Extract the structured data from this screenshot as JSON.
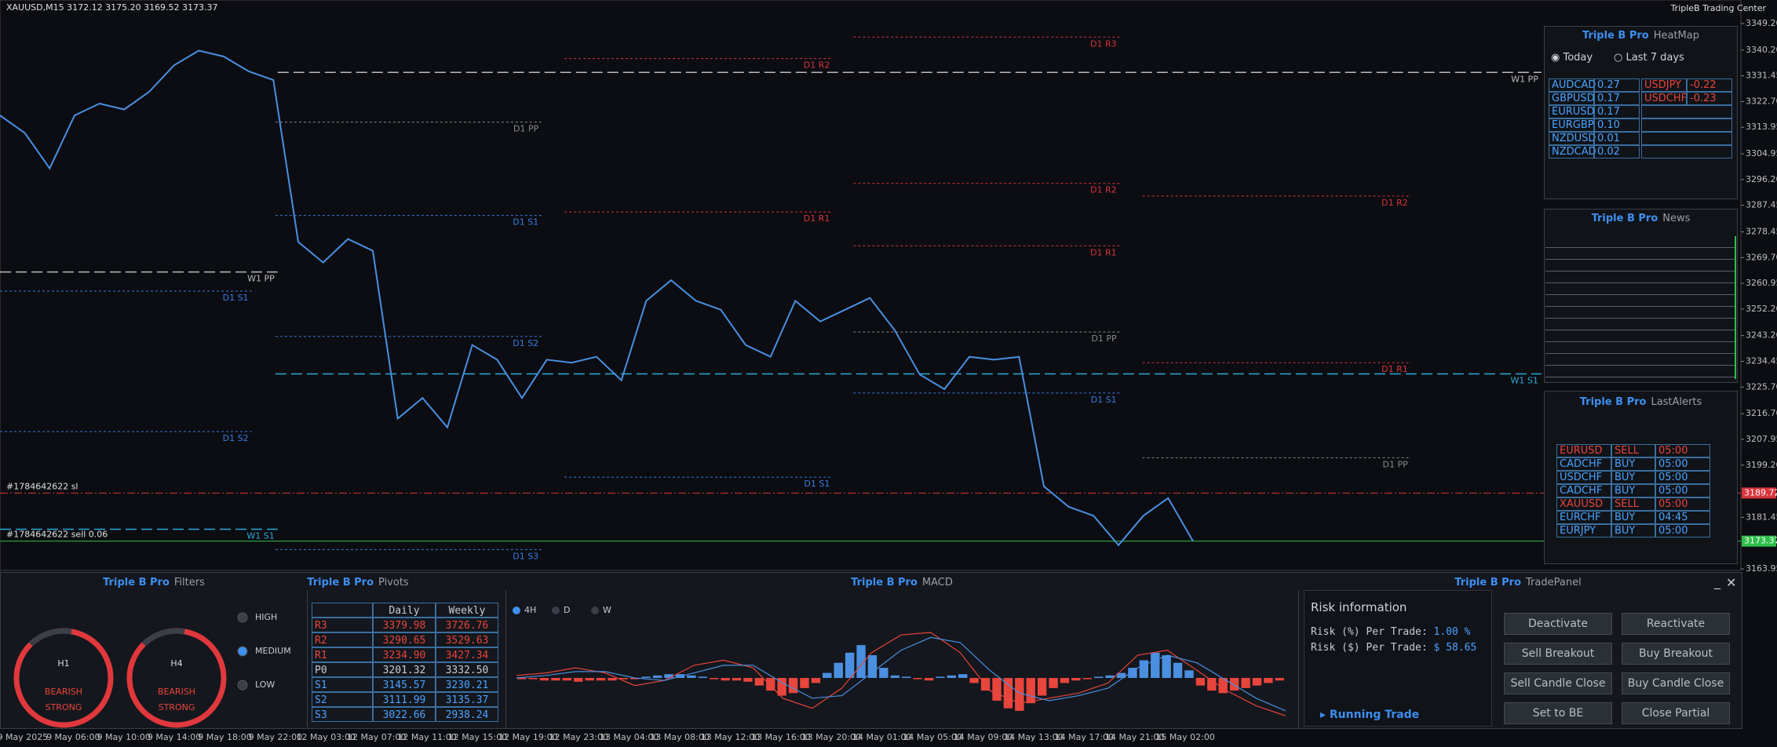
{
  "header": {
    "symbol_info": "XAUUSD,M15  3172.12 3175.20 3169.52 3173.37",
    "brand": "TripleB Trading Center"
  },
  "chart_data": {
    "type": "line",
    "x_labels": [
      "9 May 2025",
      "9 May 06:00",
      "9 May 10:00",
      "9 May 14:00",
      "9 May 18:00",
      "9 May 22:00",
      "12 May 03:00",
      "12 May 07:00",
      "12 May 11:00",
      "12 May 15:00",
      "12 May 19:00",
      "12 May 23:00",
      "13 May 04:00",
      "13 May 08:00",
      "13 May 12:00",
      "13 May 16:00",
      "13 May 20:00",
      "14 May 01:00",
      "14 May 05:00",
      "14 May 09:00",
      "14 May 13:00",
      "14 May 17:00",
      "14 May 21:00",
      "15 May 02:00"
    ],
    "close": [
      3318,
      3312,
      3300,
      3318,
      3322,
      3320,
      3326,
      3335,
      3340,
      3338,
      3333,
      3330,
      3275,
      3268,
      3276,
      3272,
      3215,
      3222,
      3212,
      3240,
      3235,
      3222,
      3235,
      3234,
      3236,
      3228,
      3255,
      3262,
      3255,
      3252,
      3240,
      3236,
      3255,
      3248,
      3252,
      3256,
      3245,
      3230,
      3225,
      3236,
      3235,
      3236,
      3192,
      3185,
      3182,
      3172,
      3182,
      3188,
      3173.37
    ],
    "color": "#4a8fe0",
    "ylim": [
      3163.95,
      3349.2
    ],
    "yticks": [
      {
        "value": 3349.2,
        "label": "3349.20"
      },
      {
        "value": 3340.2,
        "label": "3340.20"
      },
      3331.45,
      {
        "value": 3322.7,
        "label": "3322.70"
      },
      3313.95,
      3304.95,
      {
        "value": 3296.2,
        "label": "3296.20"
      },
      3287.45,
      3278.45,
      {
        "value": 3269.7,
        "label": "3269.70"
      },
      3260.95,
      {
        "value": 3252.2,
        "label": "3252.20"
      },
      {
        "value": 3243.2,
        "label": "3243.20"
      },
      3234.45,
      {
        "value": 3225.7,
        "label": "3225.70"
      },
      {
        "value": 3216.7,
        "label": "3216.70"
      },
      3207.95,
      {
        "value": 3199.2,
        "label": "3199.20"
      },
      3181.45,
      3163.95
    ],
    "levels": [
      {
        "label": "W1 PP",
        "value": 3332.6,
        "color": "#bbbbbb"
      },
      {
        "label": "W1 PP",
        "value": 3264.8,
        "color": "#bbbbbb"
      },
      {
        "label": "W1 S1",
        "value": 3230.2,
        "color": "#2fa8d8"
      },
      {
        "label": "W1 S1",
        "value": 3177.4,
        "color": "#2fa8d8"
      },
      {
        "label": "D1 R3",
        "value": 3344.6,
        "color": "#d8343a"
      },
      {
        "label": "D1 R2",
        "value": 3337.3,
        "color": "#d8343a"
      },
      {
        "label": "D1 R2",
        "value": 3294.9,
        "color": "#d8343a"
      },
      {
        "label": "D1 R1",
        "value": 3285.2,
        "color": "#d8343a"
      },
      {
        "label": "D1 R1",
        "value": 3273.7,
        "color": "#d8343a"
      },
      {
        "label": "D1 R2",
        "value": 3290.6,
        "color": "#d8343a"
      },
      {
        "label": "D1 R1",
        "value": 3234,
        "color": "#d8343a"
      },
      {
        "label": "D1 PP",
        "value": 3315.7,
        "color": "#8a8a8a"
      },
      {
        "label": "D1 PP",
        "value": 3244.4,
        "color": "#8a8a8a"
      },
      {
        "label": "D1 PP",
        "value": 3201.7,
        "color": "#8a8a8a"
      },
      {
        "label": "D1 S1",
        "value": 3284,
        "color": "#3a7be0"
      },
      {
        "label": "D1 S1",
        "value": 3258.3,
        "color": "#3a7be0"
      },
      {
        "label": "D1 S1",
        "value": 3223.7,
        "color": "#3a7be0"
      },
      {
        "label": "D1 S1",
        "value": 3195.1,
        "color": "#3a7be0"
      },
      {
        "label": "D1 S2",
        "value": 3242.9,
        "color": "#3a7be0"
      },
      {
        "label": "D1 S2",
        "value": 3210.6,
        "color": "#3a7be0"
      },
      {
        "label": "D1 S3",
        "value": 3170.5,
        "color": "#3a7be0"
      }
    ],
    "orders": [
      {
        "label": "#1784642622 sl",
        "value": 3189.72,
        "color": "#d8343a"
      },
      {
        "label": "#1784642622 sell 0.06",
        "value": 3173.37,
        "color": "#2fbf4a"
      }
    ]
  },
  "heatmap": {
    "brand": "Triple B Pro",
    "title": "HeatMap",
    "options": [
      "Today",
      "Last 7 days"
    ],
    "positive": [
      [
        "AUDCAD",
        "0.27"
      ],
      [
        "GBPUSD",
        "0.17"
      ],
      [
        "EURUSD",
        "0.17"
      ],
      [
        "EURGBP",
        "0.10"
      ],
      [
        "NZDUSD",
        "0.01"
      ],
      [
        "NZDCAD",
        "0.02"
      ]
    ],
    "negative": [
      [
        "USDJPY",
        "-0.22"
      ],
      [
        "USDCHF",
        "-0.23"
      ]
    ]
  },
  "news": {
    "brand": "Triple B Pro",
    "title": "News"
  },
  "alerts": {
    "brand": "Triple B Pro",
    "title": "LastAlerts",
    "rows": [
      [
        "EURUSD",
        "SELL",
        "05:00"
      ],
      [
        "CADCHF",
        "BUY",
        "05:00"
      ],
      [
        "USDCHF",
        "BUY",
        "05:00"
      ],
      [
        "CADCHF",
        "BUY",
        "05:00"
      ],
      [
        "XAUUSD",
        "SELL",
        "05:00"
      ],
      [
        "EURCHF",
        "BUY",
        "04:45"
      ],
      [
        "EURJPY",
        "BUY",
        "05:00"
      ]
    ]
  },
  "filters": {
    "brand": "Triple B Pro",
    "title": "Filters",
    "gauges": [
      {
        "tf": "H1",
        "state": "BEARISH",
        "strength": "STRONG"
      },
      {
        "tf": "H4",
        "state": "BEARISH",
        "strength": "STRONG"
      }
    ],
    "levels": [
      "HIGH",
      "MEDIUM",
      "LOW"
    ]
  },
  "pivots": {
    "brand": "Triple B Pro",
    "title": "Pivots",
    "columns": [
      "Daily",
      "Weekly"
    ],
    "rows": [
      [
        "R3",
        "3379.98",
        "3726.76"
      ],
      [
        "R2",
        "3290.65",
        "3529.63"
      ],
      [
        "R1",
        "3234.90",
        "3427.34"
      ],
      [
        "P0",
        "3201.32",
        "3332.50"
      ],
      [
        "S1",
        "3145.57",
        "3230.21"
      ],
      [
        "S2",
        "3111.99",
        "3135.37"
      ],
      [
        "S3",
        "3022.66",
        "2938.24"
      ]
    ]
  },
  "macd": {
    "brand": "Triple B Pro",
    "title": "MACD",
    "timeframes": [
      "4H",
      "D",
      "W"
    ],
    "histogram": [
      -1,
      -1,
      -2,
      -2,
      -2,
      -3,
      -2,
      -2,
      -2,
      -1,
      -1,
      1,
      2,
      3,
      3,
      2,
      1,
      -1,
      -2,
      -2,
      -3,
      -6,
      -10,
      -14,
      -12,
      -8,
      -4,
      4,
      12,
      20,
      26,
      18,
      8,
      2,
      1,
      -1,
      -2,
      1,
      2,
      3,
      -4,
      -10,
      -18,
      -24,
      -26,
      -20,
      -14,
      -8,
      -4,
      -2,
      -1,
      1,
      2,
      4,
      8,
      14,
      20,
      18,
      12,
      6,
      -6,
      -10,
      -12,
      -10,
      -8,
      -6,
      -4,
      -2
    ],
    "main": [
      2,
      4,
      8,
      4,
      -6,
      -2,
      10,
      14,
      8,
      -16,
      -24,
      -8,
      20,
      34,
      36,
      20,
      -10,
      -20,
      -16,
      -12,
      -4,
      18,
      22,
      6,
      -10,
      -22,
      -30
    ],
    "signal": [
      0,
      2,
      5,
      5,
      0,
      -2,
      4,
      10,
      10,
      -4,
      -16,
      -14,
      4,
      22,
      32,
      28,
      6,
      -12,
      -18,
      -14,
      -8,
      8,
      18,
      12,
      -2,
      -16,
      -26
    ]
  },
  "trade_panel": {
    "brand": "Triple B Pro",
    "title": "TradePanel",
    "risk_title": "Risk information",
    "risk_pct_label": "Risk (%) Per Trade:",
    "risk_pct": "1.00 %",
    "risk_usd_label": "Risk ($) Per Trade:",
    "risk_usd": "$ 58.65",
    "running": "Running Trade",
    "buttons": [
      "Deactivate",
      "Reactivate",
      "Sell Breakout",
      "Buy Breakout",
      "Sell Candle Close",
      "Buy Candle Close",
      "Set to BE",
      "Close Partial"
    ]
  }
}
